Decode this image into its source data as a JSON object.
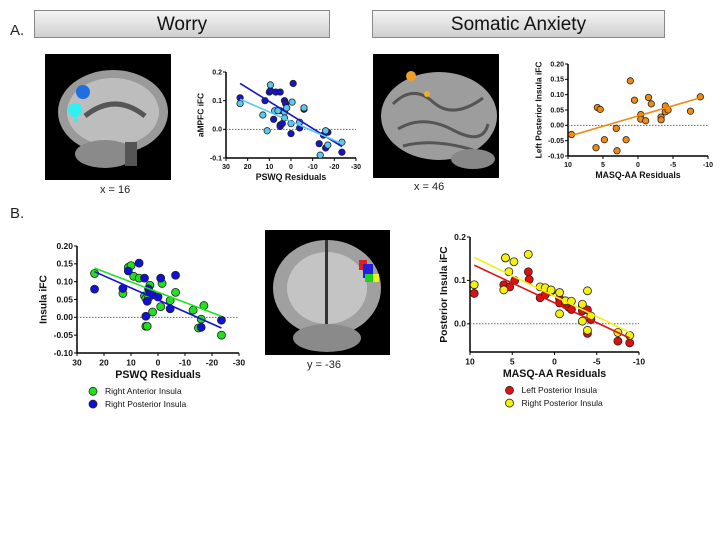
{
  "panels": {
    "a": "A.",
    "b": "B."
  },
  "headers": {
    "worry": "Worry",
    "somatic": "Somatic Anxiety"
  },
  "captions": {
    "brain1": "x = 16",
    "brain2": "x = 46",
    "brain3": "y = -36"
  },
  "colors": {
    "dark_blue": "#1010c8",
    "light_blue": "#5cc8f0",
    "orange": "#f08a10",
    "green": "#20e020",
    "blue": "#1010d8",
    "red": "#e01010",
    "yellow": "#f5f010"
  },
  "chart_data": [
    {
      "type": "scatter",
      "id": "c1",
      "title": "",
      "xlabel": "PSWQ Residuals",
      "ylabel": "aMPFC iFC",
      "xlim": [
        30,
        -30
      ],
      "ylim": [
        -0.1,
        0.2
      ],
      "xticks": [
        30,
        20,
        10,
        0,
        -10,
        -20,
        -30
      ],
      "yticks": [
        -0.1,
        0.0,
        0.1,
        0.2
      ],
      "ytick_labels": [
        "-0.1",
        "0.0",
        "0.1",
        "0.2"
      ],
      "series": [
        {
          "name": "dark",
          "color": "#1414c8",
          "points": [
            [
              23.5,
              0.11
            ],
            [
              12,
              0.1
            ],
            [
              10,
              0.13
            ],
            [
              9.5,
              0.135
            ],
            [
              7,
              0.13
            ],
            [
              5,
              0.13
            ],
            [
              5,
              0.065
            ],
            [
              3,
              0.1
            ],
            [
              2.5,
              0.09
            ],
            [
              -1,
              0.16
            ],
            [
              8,
              0.035
            ],
            [
              5,
              0.015
            ],
            [
              5,
              0.01
            ],
            [
              4,
              0.02
            ],
            [
              0,
              -0.015
            ],
            [
              -4,
              0.005
            ],
            [
              -6,
              0.07
            ],
            [
              -13,
              -0.05
            ],
            [
              -15,
              -0.02
            ],
            [
              -16,
              -0.065
            ],
            [
              -17,
              -0.01
            ],
            [
              -23.5,
              -0.08
            ]
          ],
          "fit": [
            [
              23.5,
              0.16
            ],
            [
              -23.5,
              -0.06
            ]
          ]
        },
        {
          "name": "light",
          "color": "#5cc8f0",
          "points": [
            [
              23.5,
              0.09
            ],
            [
              13,
              0.05
            ],
            [
              11,
              -0.005
            ],
            [
              9.5,
              0.155
            ],
            [
              7.5,
              0.065
            ],
            [
              6,
              0.065
            ],
            [
              3,
              0.06
            ],
            [
              2,
              0.075
            ],
            [
              3,
              0.04
            ],
            [
              0,
              0.02
            ],
            [
              -0.5,
              0.095
            ],
            [
              -4,
              0.025
            ],
            [
              -6,
              0.075
            ],
            [
              -13.5,
              -0.09
            ],
            [
              -16,
              -0.005
            ],
            [
              -17,
              -0.055
            ],
            [
              -23.5,
              -0.045
            ]
          ],
          "fit": [
            [
              23.5,
              0.105
            ],
            [
              -23.5,
              -0.05
            ]
          ]
        }
      ]
    },
    {
      "type": "scatter",
      "id": "c2",
      "title": "",
      "xlabel": "MASQ-AA Residuals",
      "ylabel": "Left Posterior Insula iFC",
      "xlim": [
        10,
        -10
      ],
      "ylim": [
        -0.1,
        0.2
      ],
      "xticks": [
        10,
        5,
        0,
        -5,
        -10
      ],
      "yticks": [
        -0.1,
        -0.05,
        0,
        0.05,
        0.1,
        0.15,
        0.2
      ],
      "ytick_labels": [
        "-0.10",
        "-0.05",
        "0.00",
        "0.05",
        "0.10",
        "0.15",
        "0.20"
      ],
      "series": [
        {
          "name": "Left Posterior Insula",
          "color": "#f08a10",
          "points": [
            [
              9.5,
              -0.03
            ],
            [
              6,
              -0.073
            ],
            [
              5.8,
              0.058
            ],
            [
              5.4,
              0.052
            ],
            [
              4.8,
              -0.047
            ],
            [
              3.1,
              -0.01
            ],
            [
              3,
              -0.083
            ],
            [
              1.7,
              -0.047
            ],
            [
              1.1,
              0.145
            ],
            [
              0.5,
              0.082
            ],
            [
              -0.4,
              0.035
            ],
            [
              -0.4,
              0.02
            ],
            [
              -1.1,
              0.015
            ],
            [
              -1.5,
              0.091
            ],
            [
              -1.9,
              0.07
            ],
            [
              -3.3,
              0.027
            ],
            [
              -3.3,
              0.018
            ],
            [
              -3.9,
              0.063
            ],
            [
              -3.9,
              0.044
            ],
            [
              -4.3,
              0.05
            ],
            [
              -7.5,
              0.046
            ],
            [
              -8.9,
              0.093
            ]
          ],
          "fit": [
            [
              9.5,
              -0.033
            ],
            [
              -8.9,
              0.09
            ]
          ]
        }
      ]
    },
    {
      "type": "scatter",
      "id": "c3",
      "title": "",
      "xlabel": "PSWQ Residuals",
      "ylabel": "Insula iFC",
      "xlim": [
        30,
        -30
      ],
      "ylim": [
        -0.1,
        0.2
      ],
      "xticks": [
        30,
        20,
        10,
        0,
        -10,
        -20,
        -30
      ],
      "yticks": [
        -0.1,
        -0.05,
        0,
        0.05,
        0.1,
        0.15,
        0.2
      ],
      "ytick_labels": [
        "-0.10",
        "-0.05",
        "0.00",
        "0.05",
        "0.10",
        "0.15",
        "0.20"
      ],
      "legend": "bottom",
      "series": [
        {
          "name": "Right Anterior Insula",
          "color": "#20e020",
          "points": [
            [
              23.5,
              0.123
            ],
            [
              13,
              0.067
            ],
            [
              11,
              0.14
            ],
            [
              10,
              0.145
            ],
            [
              9,
              0.115
            ],
            [
              7,
              0.11
            ],
            [
              5,
              0.06
            ],
            [
              4.5,
              0.053
            ],
            [
              4.5,
              -0.025
            ],
            [
              4,
              -0.025
            ],
            [
              3.5,
              0.055
            ],
            [
              3,
              0.09
            ],
            [
              2,
              0.015
            ],
            [
              -1,
              0.03
            ],
            [
              -1.5,
              0.095
            ],
            [
              -4.5,
              0.047
            ],
            [
              -6.5,
              0.07
            ],
            [
              -13,
              0.02
            ],
            [
              -15,
              -0.03
            ],
            [
              -16,
              -0.005
            ],
            [
              -17,
              0.033
            ],
            [
              -23.5,
              -0.05
            ]
          ],
          "fit": [
            [
              23.5,
              0.138
            ],
            [
              -23.5,
              0.003
            ]
          ]
        },
        {
          "name": "Right Posterior Insula",
          "color": "#1010d8",
          "points": [
            [
              23.5,
              0.079
            ],
            [
              13,
              0.081
            ],
            [
              11,
              0.13
            ],
            [
              7,
              0.152
            ],
            [
              5,
              0.11
            ],
            [
              4.5,
              0.003
            ],
            [
              4,
              0.045
            ],
            [
              3.5,
              0.08
            ],
            [
              3,
              0.07
            ],
            [
              2,
              0.063
            ],
            [
              0,
              0.057
            ],
            [
              -1,
              0.11
            ],
            [
              -4.5,
              0.024
            ],
            [
              -6.5,
              0.118
            ],
            [
              -16,
              -0.028
            ],
            [
              -23.5,
              -0.008
            ]
          ],
          "fit": [
            [
              23.5,
              0.128
            ],
            [
              -23.5,
              -0.03
            ]
          ]
        }
      ]
    },
    {
      "type": "scatter",
      "id": "c4",
      "title": "",
      "xlabel": "MASQ-AA Residuals",
      "ylabel": "Posterior Insula iFC",
      "xlim": [
        10,
        -10
      ],
      "ylim": [
        -0.065,
        0.2
      ],
      "xticks": [
        10,
        5,
        0,
        -5,
        -10
      ],
      "yticks": [
        0,
        0.1,
        0.2
      ],
      "ytick_labels": [
        "0.0",
        "0.1",
        "0.2"
      ],
      "legend": "bottom",
      "series": [
        {
          "name": "Left Posterior Insula",
          "color": "#e01010",
          "points": [
            [
              9.5,
              0.07
            ],
            [
              6,
              0.09
            ],
            [
              5.8,
              0.152
            ],
            [
              5.3,
              0.085
            ],
            [
              4.7,
              0.1
            ],
            [
              3.1,
              0.12
            ],
            [
              3,
              0.102
            ],
            [
              1.7,
              0.06
            ],
            [
              1.1,
              0.067
            ],
            [
              0.4,
              0.075
            ],
            [
              -0.6,
              0.058
            ],
            [
              -0.6,
              0.048
            ],
            [
              -1.3,
              0.044
            ],
            [
              -1.7,
              0.038
            ],
            [
              -2,
              0.033
            ],
            [
              -3.3,
              0.04
            ],
            [
              -3.3,
              0.03
            ],
            [
              -3.9,
              0.032
            ],
            [
              -3.9,
              -0.022
            ],
            [
              -4.3,
              0.01
            ],
            [
              -7.5,
              -0.04
            ],
            [
              -8.9,
              -0.044
            ]
          ],
          "fit": [
            [
              9.5,
              0.135
            ],
            [
              -8.9,
              -0.033
            ]
          ]
        },
        {
          "name": "Right Posterior Insula",
          "color": "#f5f010",
          "points": [
            [
              9.5,
              0.09
            ],
            [
              6,
              0.078
            ],
            [
              5.8,
              0.152
            ],
            [
              5.4,
              0.12
            ],
            [
              4.8,
              0.143
            ],
            [
              3.1,
              0.16
            ],
            [
              1.7,
              0.085
            ],
            [
              1.1,
              0.083
            ],
            [
              0.4,
              0.078
            ],
            [
              -0.6,
              0.072
            ],
            [
              -0.6,
              0.023
            ],
            [
              -1.3,
              0.053
            ],
            [
              -2,
              0.052
            ],
            [
              -3.3,
              0.045
            ],
            [
              -3.3,
              0.006
            ],
            [
              -3.9,
              0.076
            ],
            [
              -3.9,
              -0.015
            ],
            [
              -4.3,
              0.018
            ],
            [
              -7.5,
              -0.02
            ],
            [
              -8.9,
              -0.027
            ]
          ],
          "fit": [
            [
              9.5,
              0.153
            ],
            [
              -8.9,
              -0.02
            ]
          ]
        }
      ]
    }
  ]
}
